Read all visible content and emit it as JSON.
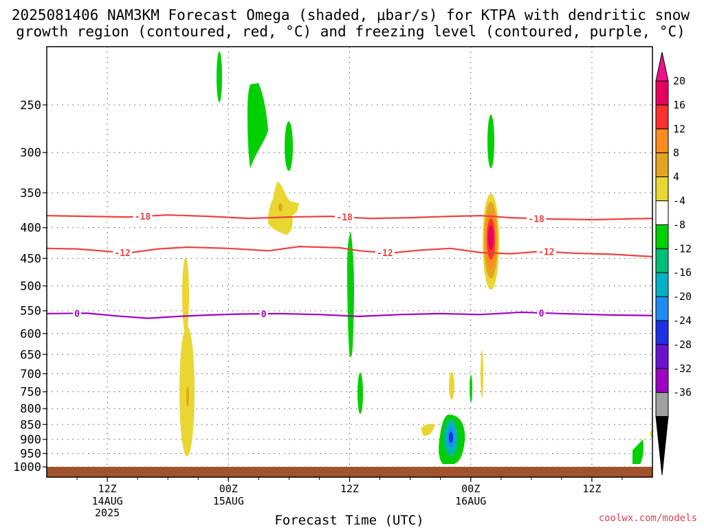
{
  "chart_data": {
    "type": "heatmap",
    "title_line1": "2025081406 NAM3KM Forecast Omega (shaded, μbar/s) for KTPA with dendritic snow",
    "title_line2": "growth region (contoured, red, °C) and freezing level (contoured, purple, °C)",
    "xlabel": "Forecast Time (UTC)",
    "watermark": "coolwx.com/models",
    "x_ticks": [
      {
        "hour": 12,
        "line1": "12Z",
        "line2": "14AUG",
        "line3": "2025"
      },
      {
        "hour": 24,
        "line1": "00Z",
        "line2": "15AUG",
        "line3": ""
      },
      {
        "hour": 36,
        "line1": "12Z",
        "line2": "",
        "line3": ""
      },
      {
        "hour": 48,
        "line1": "00Z",
        "line2": "16AUG",
        "line3": ""
      },
      {
        "hour": 60,
        "line1": "12Z",
        "line2": "",
        "line3": ""
      }
    ],
    "xlim": [
      6,
      66
    ],
    "y_axis": "pressure (mb), log scale, inverted",
    "y_ticks": [
      250,
      300,
      350,
      400,
      450,
      500,
      550,
      600,
      650,
      700,
      750,
      800,
      850,
      900,
      950,
      1000
    ],
    "ylim": [
      200,
      1040
    ],
    "grid": true,
    "colorbar": {
      "labels": [
        "20",
        "16",
        "12",
        "8",
        "4",
        "-4",
        "-8",
        "-12",
        "-16",
        "-20",
        "-24",
        "-28",
        "-32",
        "-36"
      ],
      "colors": [
        "#e8005f",
        "#ff3030",
        "#ff8a1e",
        "#e3a520",
        "#e9d630",
        "#ffffff",
        "#00cf00",
        "#00bd78",
        "#00b2c5",
        "#1e8cf0",
        "#1d30e6",
        "#6a12ce",
        "#9e00c6",
        "#a0a0a0"
      ],
      "extend_top_color": "#ee1289",
      "extend_bottom_color": "#000000"
    },
    "contours": [
      {
        "name": "-18",
        "color": "#ee4040",
        "label_hours": [
          15.5,
          35.5,
          54.5
        ],
        "values": [
          [
            6,
            382
          ],
          [
            10,
            383
          ],
          [
            14,
            384
          ],
          [
            18,
            381
          ],
          [
            22,
            383
          ],
          [
            26,
            386
          ],
          [
            30,
            384
          ],
          [
            34,
            383
          ],
          [
            38,
            386
          ],
          [
            42,
            385
          ],
          [
            46,
            383
          ],
          [
            49,
            382
          ],
          [
            52,
            385
          ],
          [
            56,
            387
          ],
          [
            60,
            388
          ],
          [
            63,
            387
          ],
          [
            66,
            386
          ]
        ]
      },
      {
        "name": "-12",
        "color": "#ee4040",
        "label_hours": [
          13.5,
          39.5,
          55.5
        ],
        "values": [
          [
            6,
            433
          ],
          [
            9,
            434
          ],
          [
            12,
            438
          ],
          [
            14,
            441
          ],
          [
            17,
            434
          ],
          [
            20,
            431
          ],
          [
            24,
            433
          ],
          [
            28,
            437
          ],
          [
            31,
            430
          ],
          [
            35,
            432
          ],
          [
            37,
            437
          ],
          [
            40,
            441
          ],
          [
            43,
            436
          ],
          [
            46,
            433
          ],
          [
            49,
            440
          ],
          [
            52,
            442
          ],
          [
            55,
            438
          ],
          [
            58,
            441
          ],
          [
            62,
            443
          ],
          [
            66,
            447
          ]
        ]
      },
      {
        "name": "0",
        "color": "#9f00c5",
        "label_hours": [
          9.0,
          27.5,
          55.0
        ],
        "values": [
          [
            6,
            556
          ],
          [
            10,
            555
          ],
          [
            13,
            561
          ],
          [
            16,
            566
          ],
          [
            19,
            562
          ],
          [
            22,
            559
          ],
          [
            25,
            557
          ],
          [
            29,
            556
          ],
          [
            33,
            558
          ],
          [
            37,
            562
          ],
          [
            41,
            558
          ],
          [
            45,
            556
          ],
          [
            49,
            558
          ],
          [
            53,
            553
          ],
          [
            57,
            556
          ],
          [
            62,
            559
          ],
          [
            66,
            560
          ]
        ]
      }
    ],
    "omega_regions": [
      {
        "name": "updraft-col1",
        "hour_range": [
          21.0,
          22.0
        ],
        "pressure_range": [
          490,
          890
        ],
        "values_ubar_s": [
          4,
          8
        ]
      },
      {
        "name": "updraft-col2",
        "hour_range": [
          29.0,
          30.7
        ],
        "pressure_range": [
          340,
          420
        ],
        "values_ubar_s": [
          4,
          8
        ]
      },
      {
        "name": "updraft-col3",
        "hour_range": [
          49.0,
          50.3
        ],
        "pressure_range": [
          360,
          515
        ],
        "values_ubar_s": [
          4,
          20
        ]
      },
      {
        "name": "downdraft-green-a",
        "hour_range": [
          23.7,
          24.2
        ],
        "pressure_range": [
          205,
          255
        ],
        "values_ubar_s": [
          -4,
          -8
        ]
      },
      {
        "name": "downdraft-green-b",
        "hour_range": [
          25.8,
          27.8
        ],
        "pressure_range": [
          235,
          330
        ],
        "values_ubar_s": [
          -4,
          -8
        ]
      },
      {
        "name": "downdraft-green-c",
        "hour_range": [
          36.0,
          36.4
        ],
        "pressure_range": [
          420,
          660
        ],
        "values_ubar_s": [
          -4,
          -8
        ]
      },
      {
        "name": "downdraft-blue",
        "hour_range": [
          44.2,
          45.7
        ],
        "pressure_range": [
          830,
          975
        ],
        "values_ubar_s": [
          -4,
          -20
        ]
      }
    ]
  }
}
